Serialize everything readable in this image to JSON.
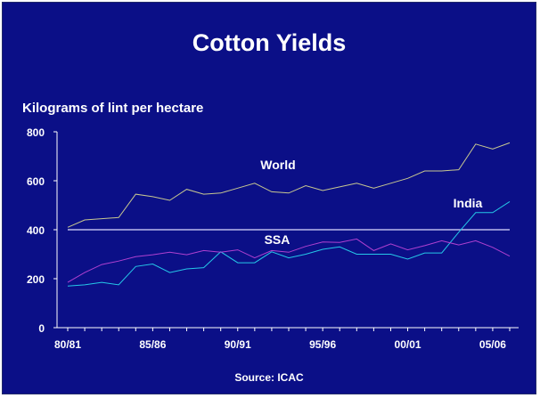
{
  "header": {
    "title": "Cotton Yields"
  },
  "chart_data": {
    "type": "line",
    "title": "Cotton Yields",
    "ylabel": "Kilograms of lint per hectare",
    "xlabel": "",
    "source": "Source: ICAC",
    "ylim": [
      0,
      800
    ],
    "yticks": [
      0,
      200,
      400,
      600,
      800
    ],
    "xticks": [
      "80/81",
      "85/86",
      "90/91",
      "95/96",
      "00/01",
      "05/06"
    ],
    "x": [
      "80/81",
      "81/82",
      "82/83",
      "83/84",
      "84/85",
      "85/86",
      "86/87",
      "87/88",
      "88/89",
      "89/90",
      "90/91",
      "91/92",
      "92/93",
      "93/94",
      "94/95",
      "95/96",
      "96/97",
      "97/98",
      "98/99",
      "99/00",
      "00/01",
      "01/02",
      "02/03",
      "03/04",
      "04/05",
      "05/06",
      "06/07"
    ],
    "reference_line": {
      "y": 400,
      "color": "#dcdcff"
    },
    "series": [
      {
        "name": "World",
        "color": "#c8c890",
        "values": [
          410,
          440,
          445,
          450,
          545,
          535,
          520,
          565,
          545,
          550,
          570,
          590,
          555,
          550,
          580,
          560,
          575,
          590,
          570,
          590,
          610,
          640,
          640,
          645,
          750,
          730,
          755
        ]
      },
      {
        "name": "India",
        "color": "#25c7e8",
        "values": [
          170,
          175,
          185,
          175,
          250,
          260,
          225,
          240,
          245,
          310,
          265,
          265,
          310,
          285,
          300,
          320,
          330,
          300,
          300,
          300,
          280,
          305,
          305,
          390,
          470,
          470,
          515
        ]
      },
      {
        "name": "SSA",
        "color": "#b040d0",
        "values": [
          185,
          225,
          258,
          272,
          290,
          298,
          308,
          298,
          315,
          308,
          318,
          285,
          315,
          308,
          332,
          350,
          348,
          362,
          315,
          342,
          318,
          335,
          355,
          338,
          355,
          328,
          292
        ]
      }
    ],
    "labels": [
      {
        "text": "World",
        "series": "World"
      },
      {
        "text": "India",
        "series": "India"
      },
      {
        "text": "SSA",
        "series": "SSA"
      }
    ],
    "grid": false
  }
}
